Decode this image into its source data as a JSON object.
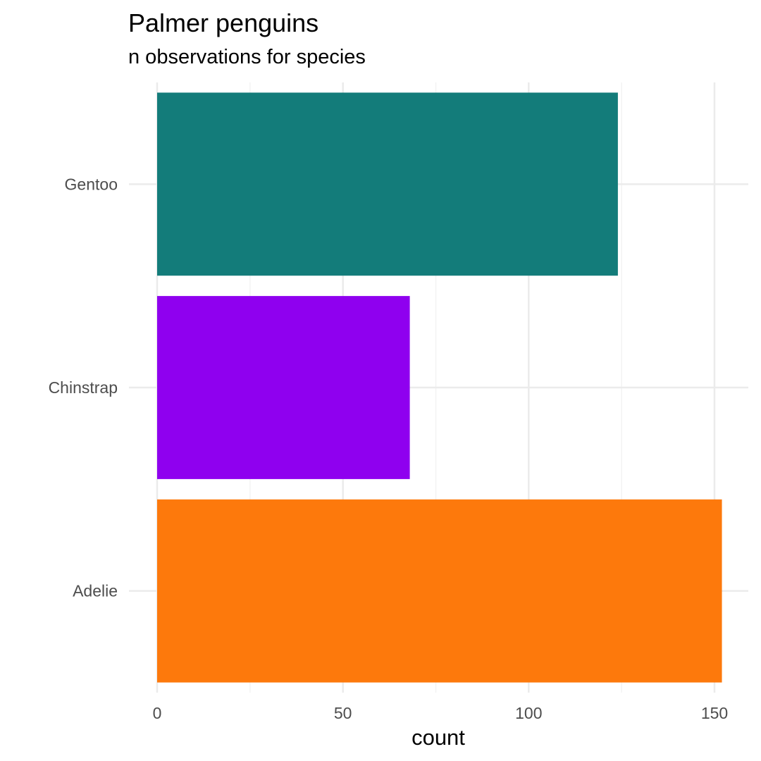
{
  "chart_data": {
    "type": "bar",
    "orientation": "horizontal",
    "title": "Palmer penguins",
    "subtitle": "n observations for species",
    "xlabel": "count",
    "ylabel": "",
    "categories": [
      "Adelie",
      "Chinstrap",
      "Gentoo"
    ],
    "values": [
      152,
      68,
      124
    ],
    "colors": [
      "#FD790C",
      "#8F00EF",
      "#137C7A"
    ],
    "xlim": [
      0,
      160
    ],
    "x_ticks": [
      0,
      50,
      100,
      150
    ],
    "x_tick_labels": [
      "0",
      "50",
      "100",
      "150"
    ],
    "grid": true,
    "legend": "none"
  },
  "colors": {
    "grid_major": "#EBEBEB",
    "grid_minor": "#F3F3F3",
    "axis_text": "#4D4D4D",
    "title_text": "#000000"
  }
}
